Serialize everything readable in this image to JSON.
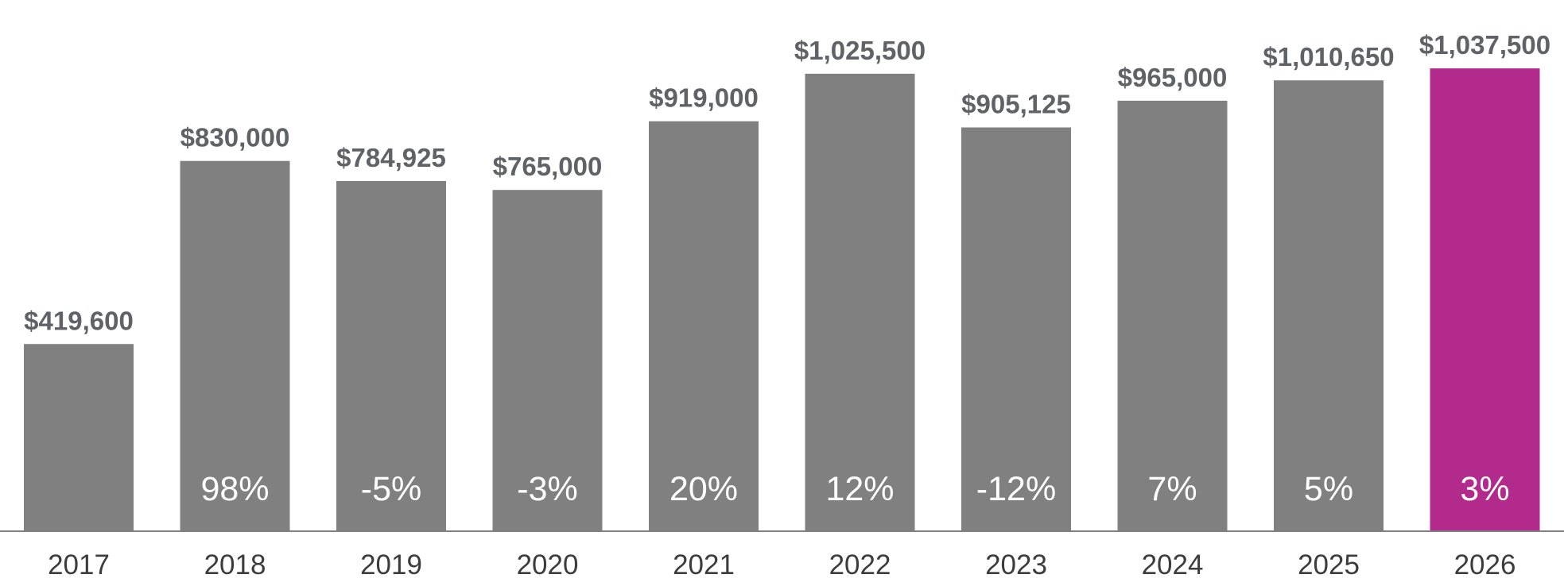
{
  "chart_data": {
    "type": "bar",
    "title": "",
    "xlabel": "",
    "ylabel": "",
    "ylim": [
      0,
      1100000
    ],
    "grid": false,
    "categories": [
      "2017",
      "2018",
      "2019",
      "2020",
      "2021",
      "2022",
      "2023",
      "2024",
      "2025",
      "2026"
    ],
    "values": [
      419600,
      830000,
      784925,
      765000,
      919000,
      1025500,
      905125,
      965000,
      1010650,
      1037500
    ],
    "value_labels": [
      "$419,600",
      "$830,000",
      "$784,925",
      "$765,000",
      "$919,000",
      "$1,025,500",
      "$905,125",
      "$965,000",
      "$1,010,650",
      "$1,037,500"
    ],
    "change_labels": [
      "",
      "98%",
      "-5%",
      "-3%",
      "20%",
      "12%",
      "-12%",
      "7%",
      "5%",
      "3%"
    ],
    "highlight_index": 9,
    "colors": {
      "bar": "#808080",
      "highlight": "#b22a8c",
      "axis": "#808080",
      "value_label": "#5f6368",
      "change_label": "#ffffff",
      "tick_label": "#3c3c3c"
    }
  }
}
